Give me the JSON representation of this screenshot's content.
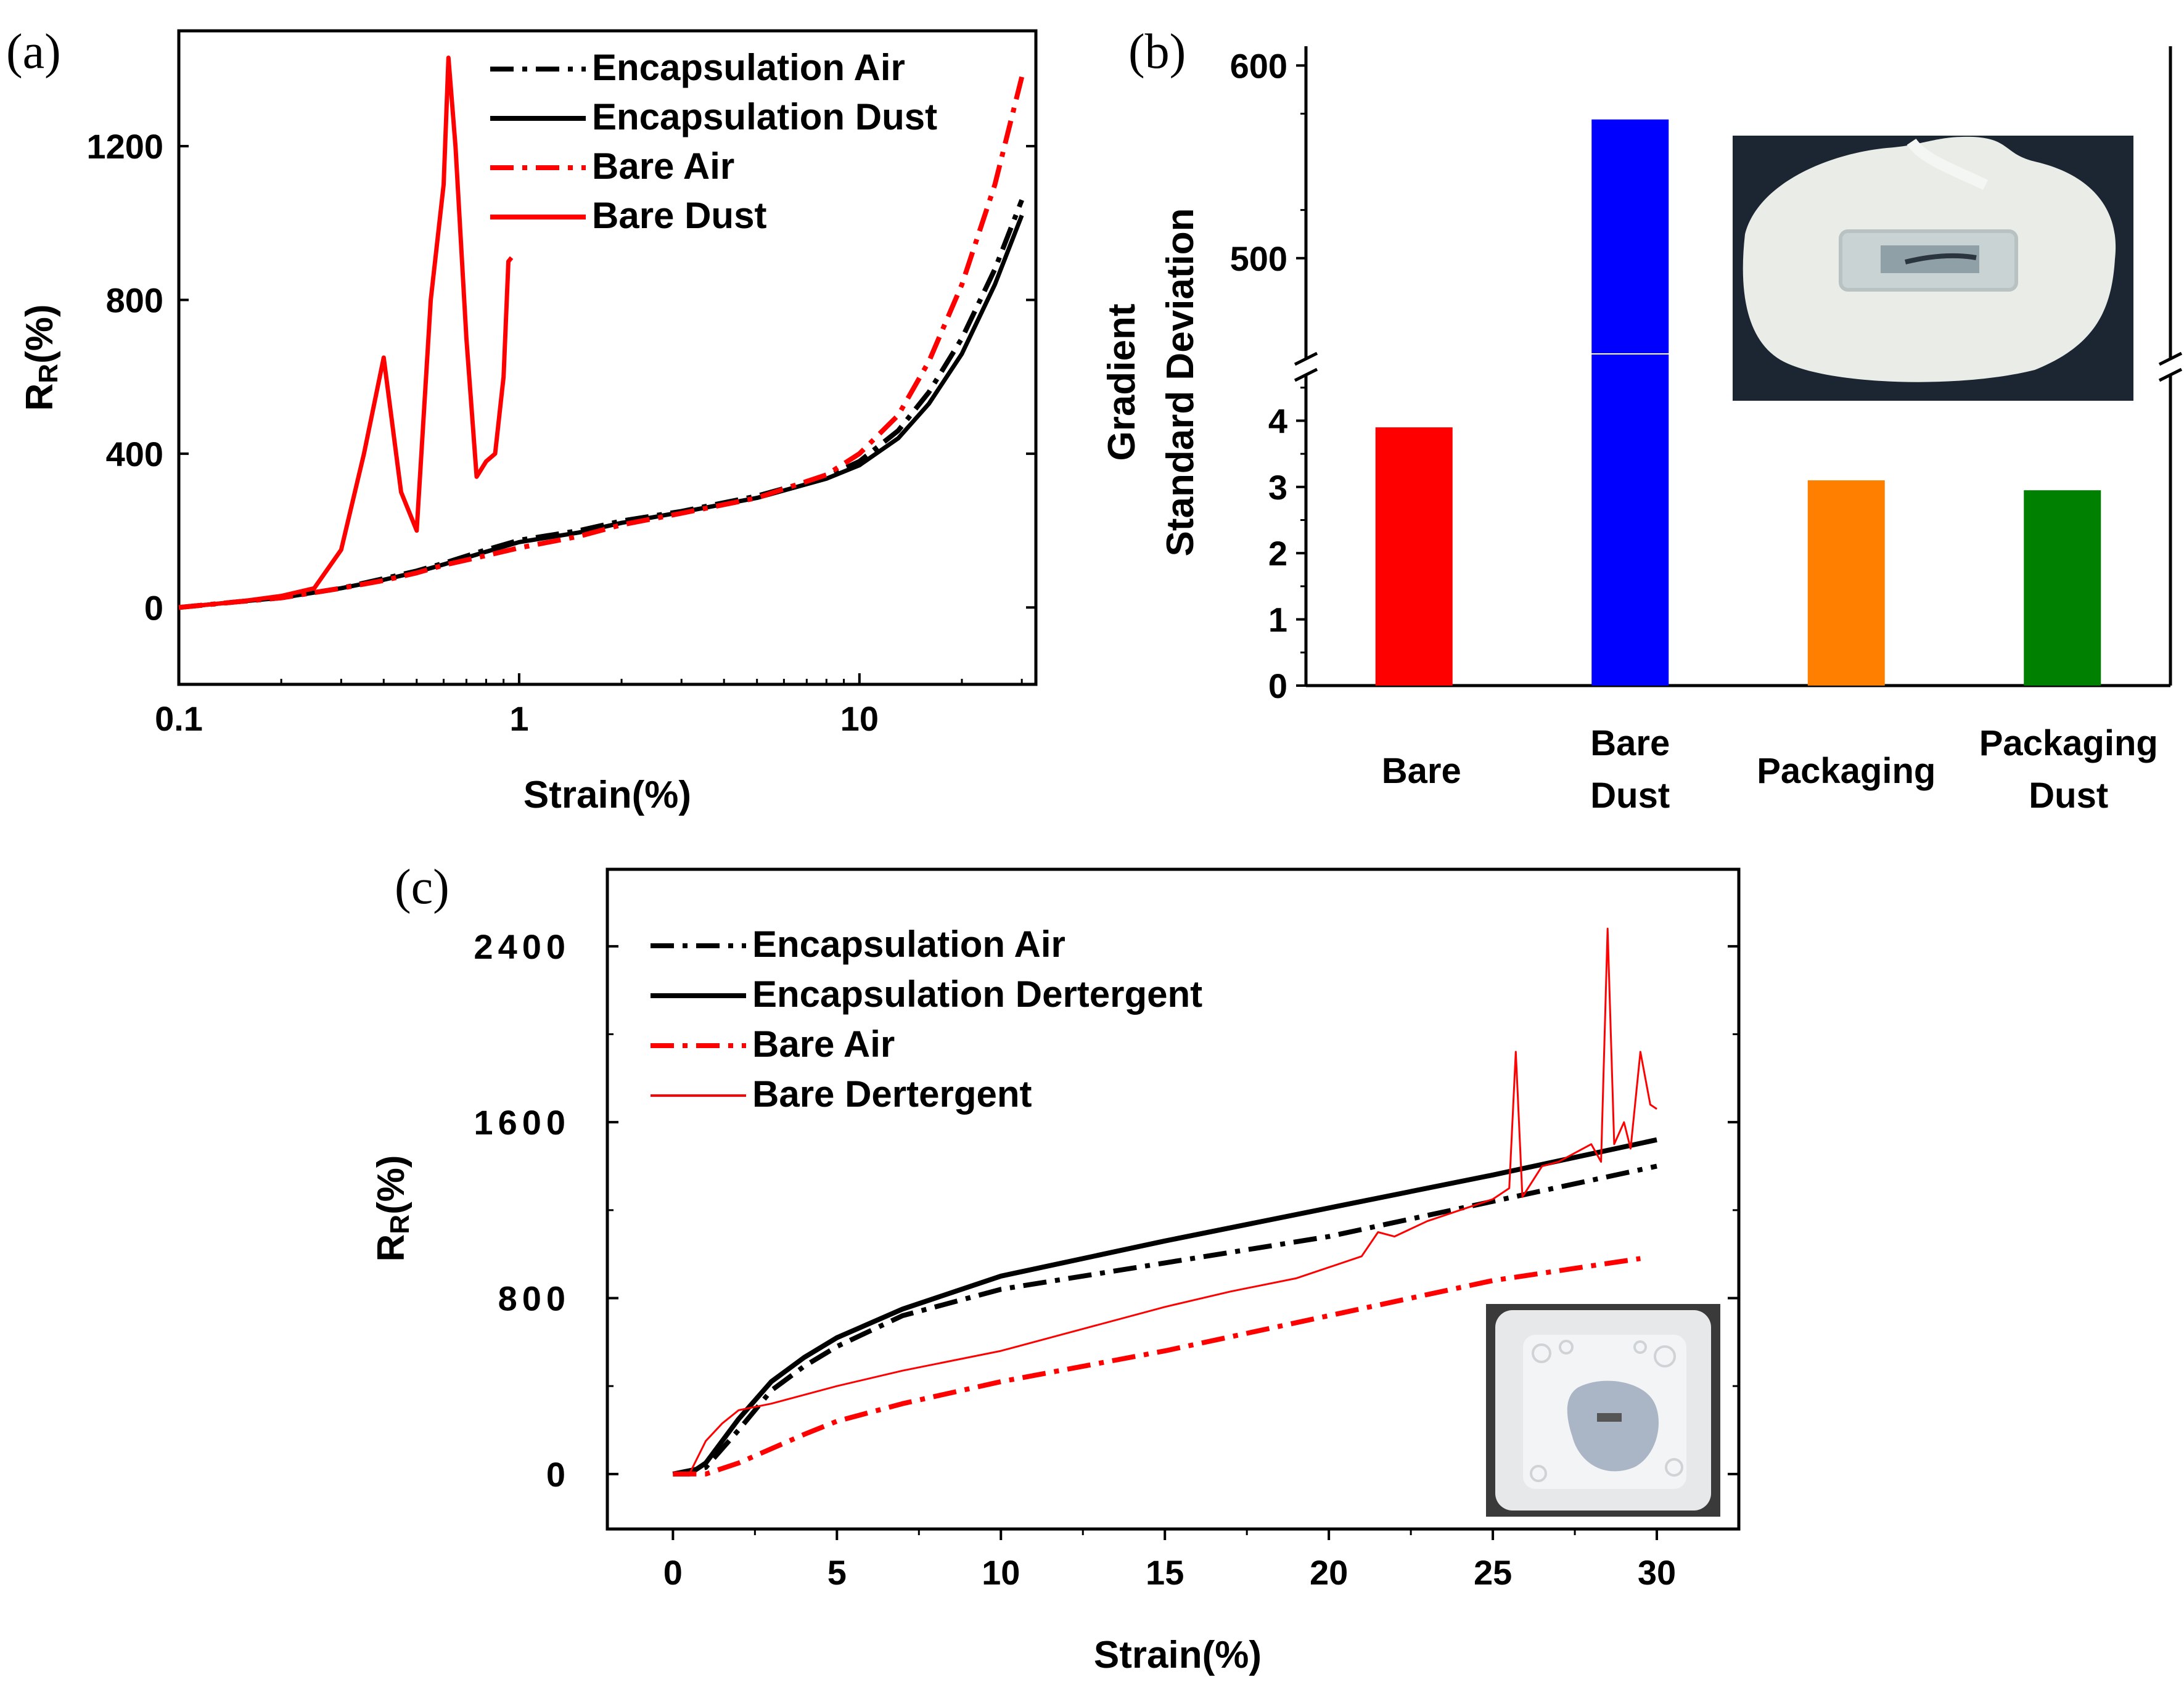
{
  "colors": {
    "black": "#000000",
    "red": "#ff0000",
    "blue": "#0000ff",
    "orange": "#ff8000",
    "green": "#008000"
  },
  "chart_data": [
    {
      "panel": "(a)",
      "type": "line",
      "xscale": "log",
      "xlabel": "Strain(%)",
      "ylabel_main": "R",
      "ylabel_sub": "R",
      "ylabel_tail": "(%)",
      "xlim": [
        0.1,
        33
      ],
      "ylim": [
        -200,
        1500
      ],
      "xticks": [
        0.1,
        1,
        10
      ],
      "xtick_labels": [
        "0.1",
        "1",
        "10"
      ],
      "yticks": [
        0,
        400,
        800,
        1200
      ],
      "ytick_labels": [
        "0",
        "400",
        "800",
        "1200"
      ],
      "legend_position": "top-left",
      "series": [
        {
          "name": "Encapsulation Air",
          "color": "#000000",
          "dash": "dashdot",
          "x": [
            0.1,
            0.15,
            0.2,
            0.3,
            0.4,
            0.5,
            0.6,
            0.8,
            1,
            1.5,
            2,
            3,
            5,
            8,
            10,
            13,
            16,
            20,
            25,
            30
          ],
          "y": [
            0,
            15,
            25,
            50,
            75,
            95,
            115,
            150,
            175,
            200,
            225,
            250,
            290,
            340,
            380,
            460,
            560,
            700,
            880,
            1060
          ]
        },
        {
          "name": "Encapsulation Dust",
          "color": "#000000",
          "dash": "solid",
          "x": [
            0.1,
            0.15,
            0.2,
            0.3,
            0.4,
            0.5,
            0.6,
            0.8,
            1,
            1.5,
            2,
            3,
            5,
            8,
            10,
            13,
            16,
            20,
            25,
            30
          ],
          "y": [
            0,
            15,
            25,
            50,
            72,
            92,
            112,
            145,
            170,
            195,
            220,
            248,
            285,
            335,
            370,
            440,
            530,
            660,
            840,
            1020
          ]
        },
        {
          "name": "Bare Air",
          "color": "#ff0000",
          "dash": "dashdot",
          "x": [
            0.1,
            0.15,
            0.2,
            0.3,
            0.4,
            0.5,
            0.6,
            0.8,
            1,
            1.5,
            2,
            3,
            5,
            8,
            10,
            13,
            16,
            20,
            25,
            30
          ],
          "y": [
            0,
            15,
            25,
            50,
            70,
            90,
            110,
            135,
            155,
            185,
            215,
            245,
            285,
            345,
            400,
            500,
            640,
            840,
            1100,
            1380
          ]
        },
        {
          "name": "Bare Dust",
          "color": "#ff0000",
          "dash": "solid",
          "x": [
            0.1,
            0.15,
            0.2,
            0.25,
            0.3,
            0.35,
            0.4,
            0.45,
            0.5,
            0.55,
            0.6,
            0.62,
            0.65,
            0.7,
            0.75,
            0.8,
            0.85,
            0.9,
            0.93,
            0.95
          ],
          "y": [
            0,
            15,
            30,
            50,
            150,
            400,
            650,
            300,
            200,
            800,
            1100,
            1430,
            1200,
            700,
            340,
            380,
            400,
            600,
            900,
            910
          ]
        }
      ]
    },
    {
      "panel": "(b)",
      "type": "bar",
      "ylabel_line1": "Gradient",
      "ylabel_line2": "Standard Deviation",
      "axis_break": true,
      "ylim_lower": [
        0,
        5
      ],
      "ylim_upper": [
        450,
        610
      ],
      "yticks_lower": [
        0,
        1,
        2,
        3,
        4
      ],
      "ytick_labels_lower": [
        "0",
        "1",
        "2",
        "3",
        "4"
      ],
      "yticks_upper": [
        500,
        600
      ],
      "ytick_labels_upper": [
        "500",
        "600"
      ],
      "categories": [
        {
          "line1": "Bare",
          "line2": ""
        },
        {
          "line1": "Bare",
          "line2": "Dust"
        },
        {
          "line1": "Packaging",
          "line2": ""
        },
        {
          "line1": "Packaging",
          "line2": "Dust"
        }
      ],
      "values": [
        3.9,
        572,
        3.1,
        2.95
      ],
      "bar_colors": [
        "#ff0000",
        "#0000ff",
        "#ff8000",
        "#008000"
      ]
    },
    {
      "panel": "(c)",
      "type": "line",
      "xlabel": "Strain(%)",
      "ylabel_main": "R",
      "ylabel_sub": "R",
      "ylabel_tail": "(%)",
      "xlim": [
        -2,
        32.5
      ],
      "ylim": [
        -250,
        2750
      ],
      "xticks": [
        0,
        5,
        10,
        15,
        20,
        25,
        30
      ],
      "xtick_labels": [
        "0",
        "5",
        "10",
        "15",
        "20",
        "25",
        "30"
      ],
      "yticks": [
        0,
        800,
        1600,
        2400
      ],
      "ytick_labels": [
        "0",
        "800",
        "1600",
        "2400"
      ],
      "legend_position": "top-left",
      "series": [
        {
          "name": "Encapsulation Air",
          "color": "#000000",
          "dash": "dashdot",
          "x": [
            0,
            1,
            2,
            3,
            4,
            5,
            7,
            10,
            15,
            20,
            25,
            30
          ],
          "y": [
            0,
            30,
            200,
            380,
            490,
            580,
            720,
            840,
            960,
            1080,
            1240,
            1400
          ]
        },
        {
          "name": "Encapsulation Dertergent",
          "color": "#000000",
          "dash": "solid",
          "x": [
            0,
            0.5,
            1,
            2,
            3,
            4,
            5,
            7,
            10,
            15,
            20,
            25,
            30
          ],
          "y": [
            0,
            0,
            50,
            250,
            420,
            530,
            620,
            750,
            900,
            1060,
            1210,
            1360,
            1520
          ]
        },
        {
          "name": "Bare Air",
          "color": "#ff0000",
          "dash": "dashdot",
          "x": [
            0,
            1,
            2,
            4,
            5,
            7,
            10,
            15,
            20,
            25,
            29.5
          ],
          "y": [
            0,
            0,
            50,
            180,
            240,
            320,
            420,
            560,
            720,
            880,
            980
          ]
        },
        {
          "name": "Bare Dertergent",
          "color": "#ff0000",
          "dash": "solid",
          "x": [
            0,
            0.5,
            1,
            1.5,
            2,
            3,
            4,
            5,
            7,
            10,
            12,
            15,
            17,
            19,
            20,
            21,
            21.5,
            22,
            23,
            24,
            25,
            25.5,
            25.7,
            25.9,
            26.5,
            27,
            28,
            28.3,
            28.5,
            28.7,
            29,
            29.2,
            29.5,
            29.8,
            30
          ],
          "y": [
            0,
            0,
            150,
            230,
            290,
            320,
            360,
            400,
            470,
            560,
            640,
            760,
            830,
            890,
            940,
            990,
            1100,
            1080,
            1150,
            1200,
            1250,
            1300,
            1920,
            1260,
            1400,
            1420,
            1500,
            1420,
            2480,
            1500,
            1600,
            1480,
            1920,
            1680,
            1660
          ]
        }
      ]
    }
  ]
}
